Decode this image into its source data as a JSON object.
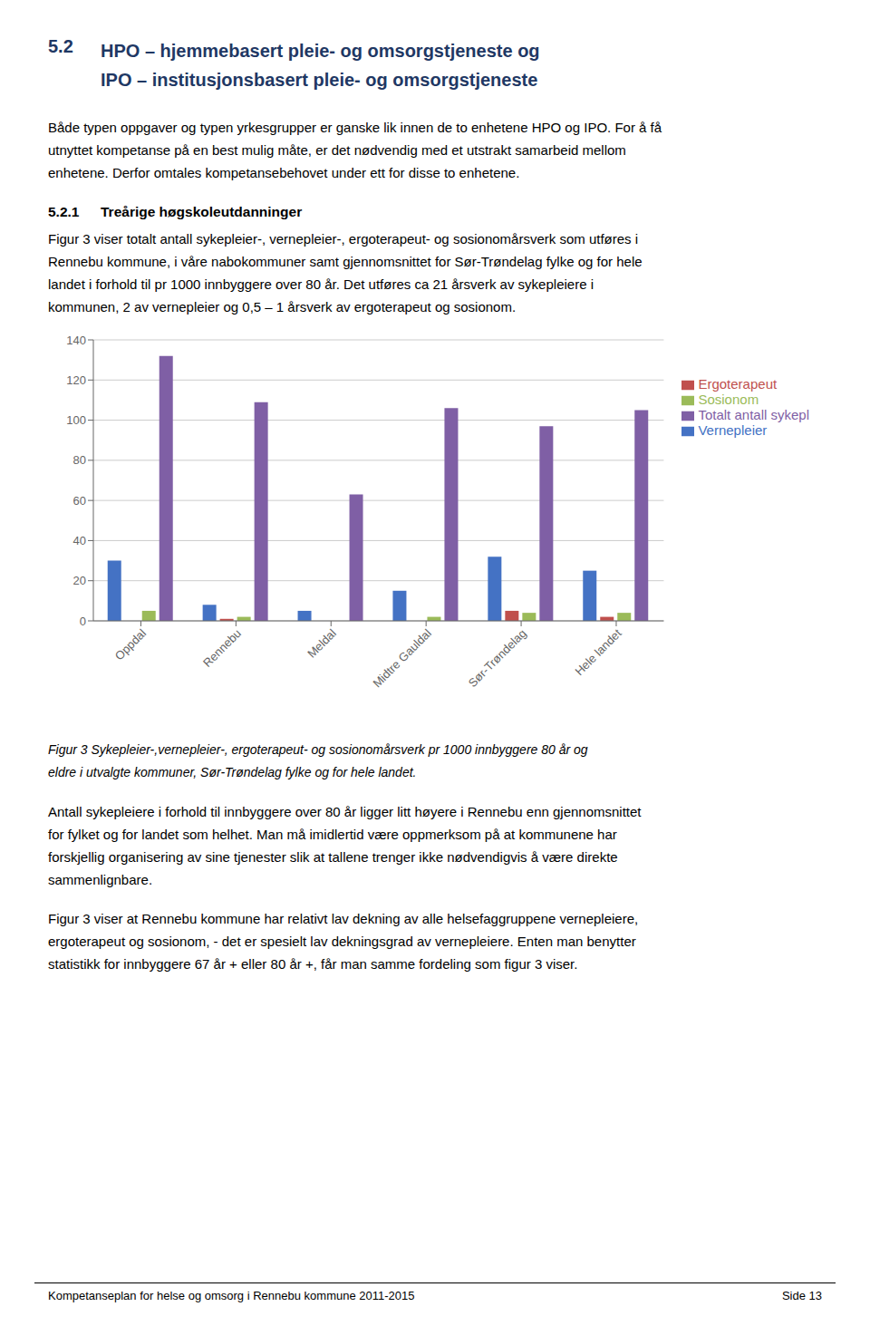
{
  "chart_data": {
    "type": "bar",
    "categories": [
      "Oppdal",
      "Rennebu",
      "Meldal",
      "Midtre Gauldal",
      "Sør-Trøndelag",
      "Hele landet"
    ],
    "series": [
      {
        "name": "Vernepleier",
        "color": "#4472C4",
        "values": [
          30,
          8,
          5,
          15,
          32,
          25
        ]
      },
      {
        "name": "Ergoterapeut",
        "color": "#C0504D",
        "values": [
          0,
          1,
          0,
          0,
          5,
          2
        ]
      },
      {
        "name": "Sosionom",
        "color": "#9BBB59",
        "values": [
          5,
          2,
          0,
          2,
          4,
          4
        ]
      },
      {
        "name": "Totalt antall sykepl",
        "color": "#7F5FA5",
        "values": [
          132,
          109,
          63,
          106,
          97,
          105
        ]
      }
    ],
    "ylim": [
      0,
      140
    ],
    "yticks": [
      0,
      20,
      40,
      60,
      80,
      100,
      120,
      140
    ],
    "grid": true,
    "legend": "right",
    "annotations": [
      [
        "5.2"
      ],
      [
        "HPO – hjemmebasert pleie- og omsorgstjeneste og",
        "IPO – institusjonsbasert pleie- og omsorgstjeneste"
      ],
      [
        "Både typen oppgaver og typen yrkesgrupper er ganske lik innen de to enhetene HPO og IPO. For å få",
        "utnyttet kompetanse på en best mulig måte, er det nødvendig med et utstrakt samarbeid mellom",
        "enhetene. Derfor omtales kompetansebehovet under ett for disse to enhetene."
      ],
      [
        "5.2.1"
      ],
      [
        "Treårige høgskoleutdanninger"
      ],
      [
        "Figur 3 viser totalt antall sykepleier-, vernepleier-, ergoterapeut- og sosionomårsverk som utføres i",
        "Rennebu kommune, i våre nabokommuner samt gjennomsnittet for Sør-Trøndelag fylke og for hele",
        "landet i forhold til pr 1000 innbyggere over 80 år. Det utføres ca 21 årsverk av sykepleiere i",
        "kommunen, 2 av vernepleier og 0,5 – 1 årsverk av ergoterapeut og sosionom."
      ],
      [
        "Figur 3 Sykepleier-,vernepleier-, ergoterapeut- og sosionomårsverk pr 1000 innbyggere 80 år og",
        "eldre i utvalgte kommuner, Sør-Trøndelag fylke og for hele landet."
      ],
      [
        "Antall sykepleiere i forhold til innbyggere over 80 år ligger litt høyere i Rennebu enn gjennomsnittet",
        "for fylket og for landet som helhet. Man må imidlertid være oppmerksom på at kommunene har",
        "forskjellig organisering av sine tjenester slik at tallene trenger ikke nødvendigvis å være direkte",
        "sammenlignbare."
      ],
      [
        "Figur 3 viser at Rennebu kommune har relativt lav dekning av alle helsefaggruppene vernepleiere,",
        "ergoterapeut og sosionom, - det er spesielt lav dekningsgrad av vernepleiere. Enten man benytter",
        "statistikk for innbyggere 67 år + eller 80 år +, får man samme fordeling som figur 3 viser."
      ],
      [
        "Kompetanseplan for helse og omsorg i Rennebu kommune 2011-2015"
      ],
      [
        "Side 13"
      ]
    ]
  }
}
